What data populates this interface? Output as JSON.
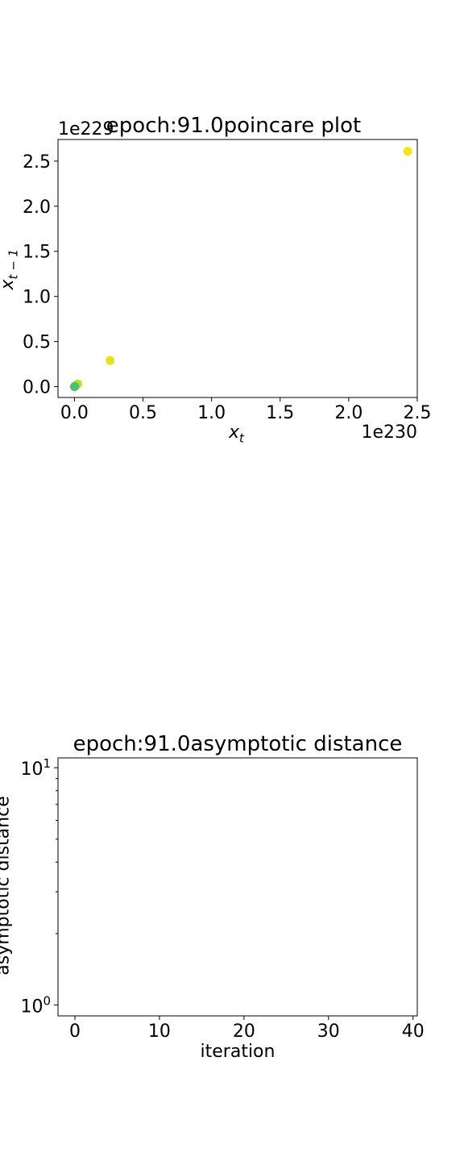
{
  "chart_data": [
    {
      "type": "scatter",
      "title": "epoch:91.0poincare plot",
      "xlabel": {
        "base": "x",
        "sub": "t"
      },
      "ylabel": {
        "base": "x",
        "sub": "t − 1"
      },
      "x_offset_text": "1e230",
      "y_offset_text": "1e229",
      "xlim": [
        -0.12,
        2.5
      ],
      "ylim": [
        -0.12,
        2.74
      ],
      "xticks": [
        0.0,
        0.5,
        1.0,
        1.5,
        2.0,
        2.5
      ],
      "yticks": [
        0.0,
        0.5,
        1.0,
        1.5,
        2.0,
        2.5
      ],
      "tick_labels": [
        "0.0",
        "0.5",
        "1.0",
        "1.5",
        "2.0",
        "2.5"
      ],
      "points": [
        {
          "x": 2.43,
          "y": 2.61,
          "color": "#f0e61c"
        },
        {
          "x": 0.26,
          "y": 0.29,
          "color": "#e2e41c"
        },
        {
          "x": 0.025,
          "y": 0.03,
          "color": "#c8e020"
        },
        {
          "x": 0.008,
          "y": 0.012,
          "color": "#a8db34"
        },
        {
          "x": 0.003,
          "y": 0.004,
          "color": "#7ad151"
        },
        {
          "x": 0.0,
          "y": 0.0,
          "color": "#4ac16d"
        }
      ],
      "grid": false
    },
    {
      "type": "line",
      "title": "epoch:91.0asymptotic distance",
      "xlabel": "iteration",
      "ylabel": "asymptotic distance",
      "xlim": [
        -2,
        40.5
      ],
      "ylim": [
        0.9,
        11
      ],
      "yscale": "log",
      "xticks": [
        0,
        10,
        20,
        30,
        40
      ],
      "yticks_major": [
        {
          "value": 1,
          "base": "10",
          "exp": "0"
        },
        {
          "value": 10,
          "base": "10",
          "exp": "1"
        }
      ],
      "yticks_minor": [
        2,
        3,
        4,
        5,
        6,
        7,
        8,
        9
      ],
      "series": [],
      "grid": false
    }
  ]
}
